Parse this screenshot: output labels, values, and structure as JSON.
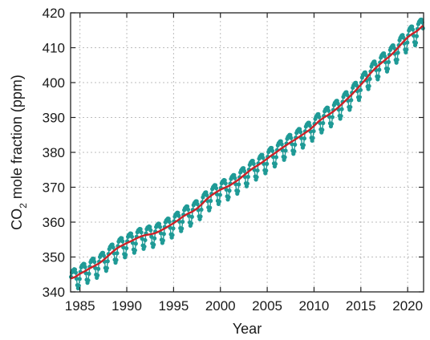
{
  "chart_data": {
    "type": "line",
    "title": "",
    "xlabel": "Year",
    "ylabel": {
      "main": "CO",
      "subscript": "2",
      "rest": " mole fraction (ppm)"
    },
    "xlim": [
      1984.0,
      2021.7
    ],
    "ylim": [
      340,
      420
    ],
    "xticks": [
      1985,
      1990,
      1995,
      2000,
      2005,
      2010,
      2015,
      2020
    ],
    "yticks": [
      340,
      350,
      360,
      370,
      380,
      390,
      400,
      410,
      420
    ],
    "grid": true,
    "legend": "none",
    "series": [
      {
        "role": "monthly",
        "style": "markers-with-line",
        "color": "#1f9a96",
        "seasonal_amplitude_ppm": 5.0,
        "x": [
          1984.0,
          1984.5,
          1985.0,
          1985.5,
          1986.0,
          1986.5,
          1987.0,
          1987.5,
          1988.0,
          1988.5,
          1989.0,
          1989.5,
          1990.0,
          1990.5,
          1991.0,
          1991.5,
          1992.0,
          1992.5,
          1993.0,
          1993.5,
          1994.0,
          1994.5,
          1995.0,
          1995.5,
          1996.0,
          1996.5,
          1997.0,
          1997.5,
          1998.0,
          1998.5,
          1999.0,
          1999.5,
          2000.0,
          2000.5,
          2001.0,
          2001.5,
          2002.0,
          2002.5,
          2003.0,
          2003.5,
          2004.0,
          2004.5,
          2005.0,
          2005.5,
          2006.0,
          2006.5,
          2007.0,
          2007.5,
          2008.0,
          2008.5,
          2009.0,
          2009.5,
          2010.0,
          2010.5,
          2011.0,
          2011.5,
          2012.0,
          2012.5,
          2013.0,
          2013.5,
          2014.0,
          2014.5,
          2015.0,
          2015.5,
          2016.0,
          2016.5,
          2017.0,
          2017.5,
          2018.0,
          2018.5,
          2019.0,
          2019.5,
          2020.0,
          2020.5,
          2021.0,
          2021.5
        ],
        "trend": [
          343.8,
          344.3,
          345.2,
          345.9,
          346.7,
          347.4,
          348.1,
          349.1,
          350.3,
          351.5,
          352.6,
          353.3,
          354.0,
          354.6,
          355.3,
          355.9,
          356.3,
          356.5,
          356.8,
          357.4,
          358.1,
          358.9,
          359.7,
          360.6,
          361.6,
          362.4,
          363.0,
          363.9,
          365.1,
          366.5,
          367.6,
          368.5,
          369.3,
          369.9,
          370.5,
          371.4,
          372.3,
          373.4,
          374.5,
          375.5,
          376.3,
          377.2,
          378.2,
          379.2,
          380.1,
          381.1,
          382.0,
          382.9,
          383.7,
          384.6,
          385.5,
          386.4,
          387.6,
          388.9,
          389.9,
          390.7,
          391.6,
          392.7,
          393.9,
          395.2,
          396.5,
          397.9,
          399.4,
          400.9,
          402.6,
          404.0,
          405.2,
          406.3,
          407.4,
          408.6,
          410.1,
          411.6,
          413.0,
          414.0,
          414.8,
          416.0
        ]
      },
      {
        "role": "trend",
        "style": "line",
        "color": "#cc2127"
      }
    ]
  }
}
